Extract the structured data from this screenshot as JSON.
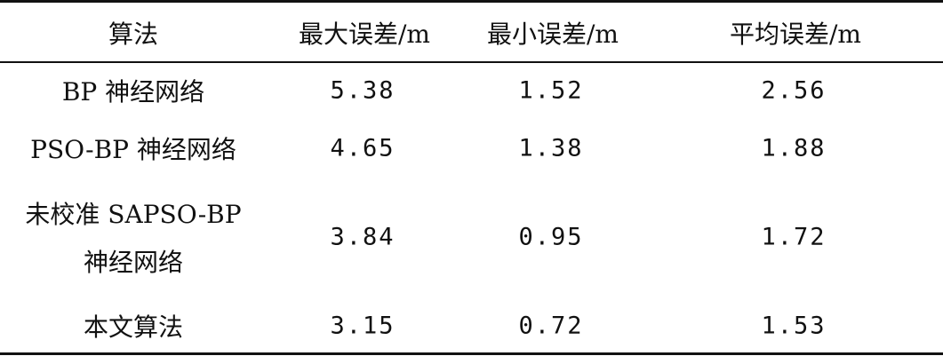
{
  "table": {
    "headers": [
      "算法",
      "最大误差/m",
      "最小误差/m",
      "平均误差/m"
    ],
    "rows": [
      {
        "algorithm": "BP 神经网络",
        "max": "5.38",
        "min": "1.52",
        "avg": "2.56"
      },
      {
        "algorithm": "PSO-BP 神经网络",
        "max": "4.65",
        "min": "1.38",
        "avg": "1.88"
      },
      {
        "algorithm_line1": "未校准 SAPSO-BP",
        "algorithm_line2": "神经网络",
        "max": "3.84",
        "min": "0.95",
        "avg": "1.72"
      },
      {
        "algorithm": "本文算法",
        "max": "3.15",
        "min": "0.72",
        "avg": "1.53"
      }
    ]
  }
}
